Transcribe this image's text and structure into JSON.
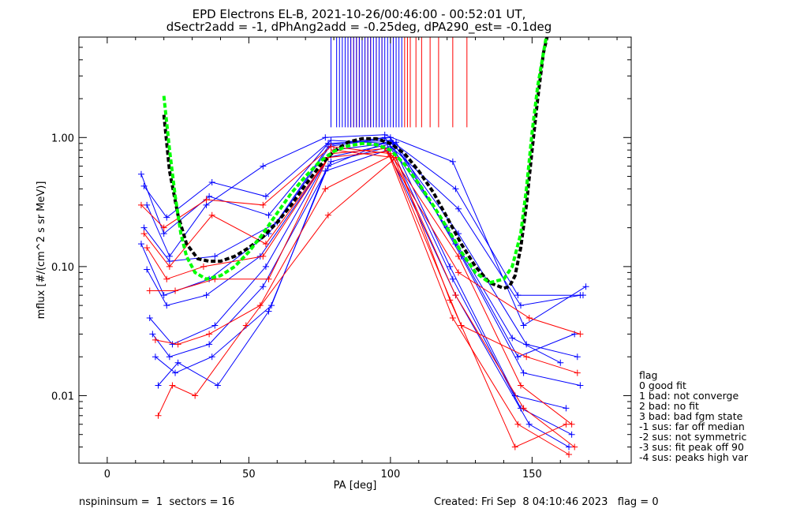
{
  "chart_data": {
    "type": "line",
    "title_line1": "EPD Electrons EL-B, 2021-10-26/00:46:00 - 00:52:01 UT,",
    "title_line2": "dSectr2add = -1, dPhAng2add = -0.25deg, dPA290_est=  -0.1deg",
    "xlabel": "PA [deg]",
    "ylabel": "mflux [#/(cm^2 s sr MeV)]",
    "xlim": [
      -10,
      185
    ],
    "ylim": [
      0.003,
      6.0
    ],
    "yscale": "log",
    "x_ticks": [
      0,
      50,
      100,
      150
    ],
    "x_tick_labels": [
      "0",
      "50",
      "100",
      "150"
    ],
    "y_ticks": [
      0.01,
      0.1,
      1.0
    ],
    "y_tick_labels": [
      "0.01",
      "0.10",
      "1.00"
    ],
    "series_colors": {
      "blue": "#0000ff",
      "red": "#ff0000",
      "fit_black": "#000000",
      "fit_green": "#00ff00"
    },
    "series": [
      {
        "color": "blue",
        "x": [
          12,
          20,
          36,
          57,
          78,
          100,
          123,
          145,
          168
        ],
        "y": [
          0.52,
          0.18,
          0.35,
          0.25,
          0.9,
          0.95,
          0.4,
          0.06,
          0.06
        ]
      },
      {
        "color": "blue",
        "x": [
          13,
          21,
          37,
          56,
          79,
          99,
          124,
          146,
          167
        ],
        "y": [
          0.42,
          0.24,
          0.45,
          0.35,
          0.95,
          0.9,
          0.28,
          0.05,
          0.06
        ]
      },
      {
        "color": "blue",
        "x": [
          14,
          22,
          35,
          55,
          77,
          98,
          122,
          147,
          169
        ],
        "y": [
          0.3,
          0.12,
          0.3,
          0.6,
          1.0,
          1.05,
          0.65,
          0.035,
          0.07
        ]
      },
      {
        "color": "blue",
        "x": [
          12,
          20,
          36,
          57,
          78,
          100,
          123,
          145,
          165
        ],
        "y": [
          0.15,
          0.06,
          0.08,
          0.18,
          0.85,
          1.0,
          0.15,
          0.02,
          0.03
        ]
      },
      {
        "color": "blue",
        "x": [
          15,
          23,
          38,
          56,
          78,
          101,
          124,
          148,
          166
        ],
        "y": [
          0.04,
          0.025,
          0.035,
          0.1,
          0.7,
          0.9,
          0.18,
          0.025,
          0.02
        ]
      },
      {
        "color": "blue",
        "x": [
          16,
          22,
          36,
          55,
          79,
          100,
          122,
          146,
          164
        ],
        "y": [
          0.03,
          0.02,
          0.025,
          0.07,
          0.65,
          0.85,
          0.08,
          0.008,
          0.005
        ]
      },
      {
        "color": "blue",
        "x": [
          17,
          24,
          37,
          58,
          77,
          99,
          123,
          149,
          163
        ],
        "y": [
          0.02,
          0.015,
          0.02,
          0.05,
          0.55,
          0.8,
          0.06,
          0.006,
          0.004
        ]
      },
      {
        "color": "blue",
        "x": [
          14,
          21,
          35,
          54,
          80,
          102,
          125,
          147,
          167
        ],
        "y": [
          0.095,
          0.05,
          0.06,
          0.12,
          0.8,
          0.92,
          0.12,
          0.015,
          0.012
        ]
      },
      {
        "color": "blue",
        "x": [
          18,
          25,
          39,
          57,
          78,
          100,
          121,
          144,
          162
        ],
        "y": [
          0.012,
          0.018,
          0.012,
          0.045,
          0.6,
          0.95,
          0.1,
          0.01,
          0.008
        ]
      },
      {
        "color": "blue",
        "x": [
          13,
          22,
          38,
          60,
          79,
          98,
          120,
          143,
          160
        ],
        "y": [
          0.2,
          0.11,
          0.12,
          0.22,
          0.88,
          1.0,
          0.2,
          0.028,
          0.018
        ]
      },
      {
        "color": "red",
        "x": [
          12,
          20,
          35,
          55,
          79,
          100,
          124,
          146,
          164
        ],
        "y": [
          0.3,
          0.2,
          0.33,
          0.3,
          0.85,
          0.75,
          0.12,
          0.012,
          0.006
        ]
      },
      {
        "color": "red",
        "x": [
          13,
          22,
          37,
          56,
          80,
          101,
          123,
          147,
          165
        ],
        "y": [
          0.18,
          0.1,
          0.25,
          0.15,
          0.8,
          0.7,
          0.06,
          0.008,
          0.004
        ]
      },
      {
        "color": "red",
        "x": [
          15,
          24,
          38,
          57,
          78,
          99,
          122,
          145,
          163
        ],
        "y": [
          0.065,
          0.065,
          0.08,
          0.08,
          0.7,
          0.78,
          0.04,
          0.006,
          0.0035
        ]
      },
      {
        "color": "red",
        "x": [
          17,
          25,
          36,
          54,
          77,
          100,
          125,
          148,
          166
        ],
        "y": [
          0.027,
          0.025,
          0.03,
          0.05,
          0.4,
          0.72,
          0.035,
          0.02,
          0.015
        ]
      },
      {
        "color": "red",
        "x": [
          18,
          23,
          31,
          49,
          78,
          102,
          121,
          144,
          162
        ],
        "y": [
          0.007,
          0.012,
          0.01,
          0.035,
          0.25,
          0.7,
          0.055,
          0.004,
          0.006
        ]
      },
      {
        "color": "red",
        "x": [
          14,
          21,
          34,
          55,
          79,
          98,
          124,
          149,
          167
        ],
        "y": [
          0.14,
          0.08,
          0.1,
          0.12,
          0.75,
          0.82,
          0.09,
          0.04,
          0.03
        ]
      }
    ],
    "fit_black": {
      "x": [
        20,
        22,
        25,
        28,
        32,
        36,
        40,
        45,
        50,
        55,
        60,
        65,
        70,
        75,
        80,
        85,
        90,
        95,
        100,
        105,
        110,
        115,
        120,
        125,
        130,
        135,
        140,
        142,
        144,
        146,
        148,
        150,
        152,
        154,
        156
      ],
      "y": [
        1.5,
        0.55,
        0.25,
        0.15,
        0.115,
        0.11,
        0.11,
        0.12,
        0.14,
        0.17,
        0.22,
        0.3,
        0.43,
        0.6,
        0.78,
        0.92,
        0.98,
        0.98,
        0.9,
        0.75,
        0.55,
        0.38,
        0.24,
        0.15,
        0.1,
        0.075,
        0.068,
        0.07,
        0.085,
        0.14,
        0.3,
        0.8,
        2.0,
        4.5,
        7.0
      ]
    },
    "fit_green": {
      "x": [
        20,
        22,
        24,
        26,
        28,
        31,
        35,
        40,
        45,
        50,
        55,
        60,
        65,
        70,
        75,
        80,
        85,
        90,
        95,
        100,
        105,
        110,
        115,
        120,
        125,
        130,
        135,
        140,
        143,
        146,
        148,
        150,
        152,
        154,
        155
      ],
      "y": [
        2.1,
        0.8,
        0.35,
        0.18,
        0.12,
        0.09,
        0.08,
        0.085,
        0.1,
        0.13,
        0.18,
        0.26,
        0.37,
        0.5,
        0.65,
        0.78,
        0.86,
        0.9,
        0.88,
        0.8,
        0.62,
        0.44,
        0.3,
        0.2,
        0.13,
        0.09,
        0.075,
        0.08,
        0.1,
        0.18,
        0.4,
        1.1,
        2.5,
        4.5,
        6.0
      ]
    },
    "spikes": {
      "blue_x": [
        79,
        81,
        82,
        83,
        84,
        85,
        86,
        87,
        88,
        89,
        90,
        91,
        92,
        93,
        94,
        95,
        96,
        97,
        98,
        99,
        100,
        101,
        102,
        103,
        104
      ],
      "red_x": [
        85,
        86,
        87,
        88,
        89,
        90,
        91,
        92,
        93,
        95,
        97,
        101,
        105,
        106,
        107,
        109,
        111,
        114,
        117,
        122,
        127
      ],
      "y_low": 1.2
    },
    "legend": {
      "title": "flag",
      "items": [
        " 0 good fit",
        " 1 bad: not converge",
        " 2 bad: no fit",
        " 3 bad: bad fgm state",
        "-1 sus: far off median",
        "-2 sus: not symmetric",
        "-3 sus: fit peak off 90",
        "-4 sus: peaks high var"
      ],
      "position": "right"
    },
    "footer_left": "nspininsum =  1  sectors = 16",
    "footer_right": "Created: Fri Sep  8 04:10:46 2023   flag = 0",
    "grid": false
  }
}
